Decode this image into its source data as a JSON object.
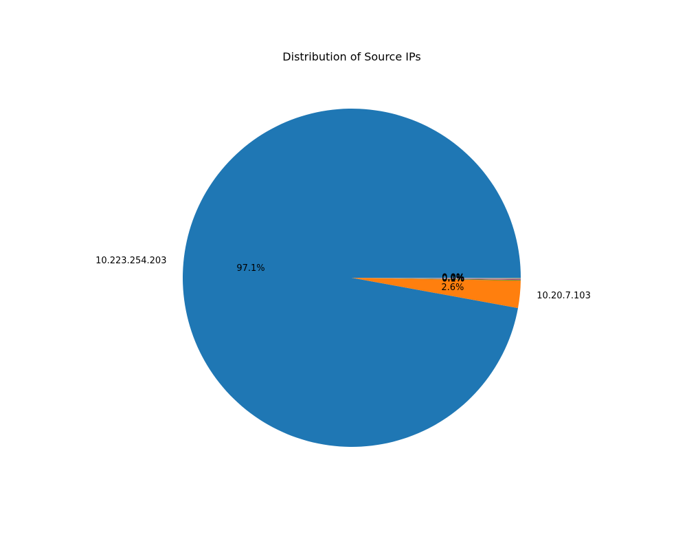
{
  "chart_data": {
    "type": "pie",
    "title": "Distribution of Source IPs",
    "slices": [
      {
        "label": "10.223.254.203",
        "value": 97.1,
        "pct_text": "97.1%",
        "color": "#1f77b4"
      },
      {
        "label": "10.20.7.103",
        "value": 2.6,
        "pct_text": "2.6%",
        "color": "#ff7f0e"
      },
      {
        "label": "",
        "value": 0.06,
        "pct_text": "0.1%",
        "color": "#2ca02c"
      },
      {
        "label": "",
        "value": 0.04,
        "pct_text": "0.0%",
        "color": "#d62728"
      },
      {
        "label": "",
        "value": 0.04,
        "pct_text": "0.0%",
        "color": "#9467bd"
      },
      {
        "label": "",
        "value": 0.03,
        "pct_text": "0.0%",
        "color": "#8c564b"
      },
      {
        "label": "",
        "value": 0.03,
        "pct_text": "0.0%",
        "color": "#e377c2"
      },
      {
        "label": "",
        "value": 0.03,
        "pct_text": "0.0%",
        "color": "#7f7f7f"
      },
      {
        "label": "",
        "value": 0.02,
        "pct_text": "0.0%",
        "color": "#bcbd22"
      },
      {
        "label": "",
        "value": 0.02,
        "pct_text": "0.0%",
        "color": "#17becf"
      }
    ],
    "start_angle_deg": 0,
    "direction": "counterclockwise",
    "legend": "none"
  }
}
